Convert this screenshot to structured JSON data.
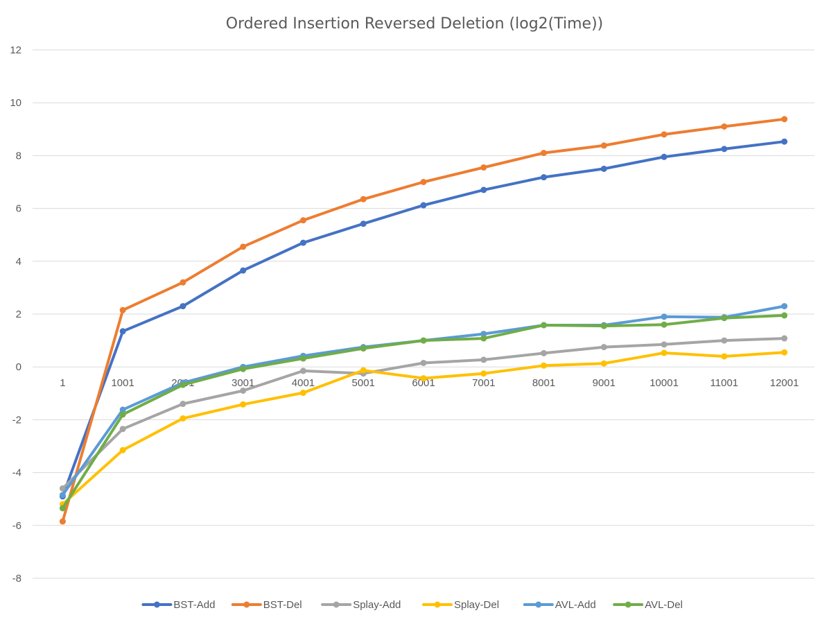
{
  "chart_data": {
    "type": "line",
    "title": "Ordered Insertion Reversed Deletion (log2(Time))",
    "xlabel": "",
    "ylabel": "",
    "categories": [
      "1",
      "1001",
      "2001",
      "3001",
      "4001",
      "5001",
      "6001",
      "7001",
      "8001",
      "9001",
      "10001",
      "11001",
      "12001"
    ],
    "ylim": [
      -8,
      12
    ],
    "yticks": [
      12,
      10,
      8,
      6,
      4,
      2,
      0,
      -2,
      -4,
      -6,
      -8
    ],
    "grid": "horizontal",
    "legend": "bottom",
    "series": [
      {
        "name": "BST-Add",
        "color": "#4472C4",
        "values": [
          -4.9,
          1.35,
          2.3,
          3.65,
          4.7,
          5.42,
          6.12,
          6.7,
          7.18,
          7.5,
          7.95,
          8.25,
          8.53
        ]
      },
      {
        "name": "BST-Del",
        "color": "#ED7D31",
        "values": [
          -5.85,
          2.15,
          3.2,
          4.55,
          5.55,
          6.35,
          7.0,
          7.55,
          8.1,
          8.38,
          8.8,
          9.1,
          9.38
        ]
      },
      {
        "name": "Splay-Add",
        "color": "#A5A5A5",
        "values": [
          -4.6,
          -2.35,
          -1.4,
          -0.9,
          -0.15,
          -0.25,
          0.15,
          0.27,
          0.52,
          0.75,
          0.85,
          1.0,
          1.08
        ]
      },
      {
        "name": "Splay-Del",
        "color": "#FFC000",
        "values": [
          -5.2,
          -3.15,
          -1.95,
          -1.42,
          -0.98,
          -0.13,
          -0.43,
          -0.25,
          0.05,
          0.13,
          0.53,
          0.4,
          0.55
        ]
      },
      {
        "name": "AVL-Add",
        "color": "#5B9BD5",
        "values": [
          -4.85,
          -1.62,
          -0.6,
          0.0,
          0.42,
          0.75,
          1.0,
          1.25,
          1.58,
          1.58,
          1.9,
          1.88,
          2.3
        ]
      },
      {
        "name": "AVL-Del",
        "color": "#70AD47",
        "values": [
          -5.35,
          -1.8,
          -0.68,
          -0.08,
          0.32,
          0.7,
          1.0,
          1.08,
          1.58,
          1.55,
          1.6,
          1.85,
          1.95
        ]
      }
    ]
  }
}
